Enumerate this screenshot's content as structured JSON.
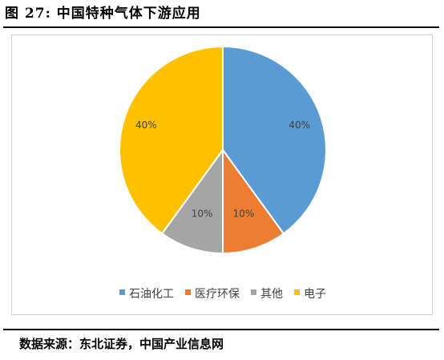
{
  "figure": {
    "title": "图  27:  中国特种气体下游应用",
    "source": "数据来源：东北证券，中国产业信息网"
  },
  "chart_data": {
    "type": "pie",
    "categories": [
      "石油化工",
      "医疗环保",
      "其他",
      "电子"
    ],
    "values": [
      40,
      10,
      10,
      40
    ],
    "labels": [
      "40%",
      "10%",
      "10%",
      "40%"
    ],
    "colors": [
      "#5B9BD5",
      "#ED7D31",
      "#A5A5A5",
      "#FFC000"
    ],
    "legend_position": "bottom",
    "start_angle": "12 o'clock",
    "direction": "clockwise"
  }
}
